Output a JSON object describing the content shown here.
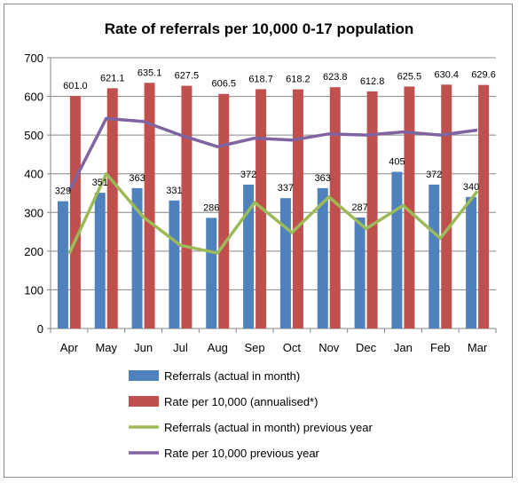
{
  "chart_data": {
    "type": "bar",
    "title": "Rate of referrals per 10,000 0-17 population",
    "categories": [
      "Apr",
      "May",
      "Jun",
      "Jul",
      "Aug",
      "Sep",
      "Oct",
      "Nov",
      "Dec",
      "Jan",
      "Feb",
      "Mar"
    ],
    "ylim": [
      0,
      700
    ],
    "yticks": [
      0,
      100,
      200,
      300,
      400,
      500,
      600,
      700
    ],
    "grid": true,
    "legend_position": "bottom",
    "series": [
      {
        "name": "Referrals (actual in month)",
        "kind": "bar",
        "color": "#4F81BD",
        "values": [
          329,
          351,
          363,
          331,
          286,
          372,
          337,
          363,
          287,
          405,
          372,
          340
        ],
        "labels": [
          "329",
          "351",
          "363",
          "331",
          "286",
          "372",
          "337",
          "363",
          "287",
          "405",
          "372",
          "340"
        ]
      },
      {
        "name": "Rate per 10,000 (annualised*)",
        "kind": "bar",
        "color": "#C0504D",
        "values": [
          601.0,
          621.1,
          635.1,
          627.5,
          606.5,
          618.7,
          618.2,
          623.8,
          612.8,
          625.5,
          630.4,
          629.6
        ],
        "labels": [
          "601.0",
          "621.1",
          "635.1",
          "627.5",
          "606.5",
          "618.7",
          "618.2",
          "623.8",
          "612.8",
          "625.5",
          "630.4",
          "629.6"
        ]
      },
      {
        "name": "Referrals (actual in month) previous year",
        "kind": "line",
        "color": "#9BBB59",
        "values": [
          193,
          400,
          288,
          215,
          195,
          326,
          248,
          340,
          258,
          318,
          233,
          355
        ]
      },
      {
        "name": "Rate per 10,000 previous year",
        "kind": "line",
        "color": "#8064A2",
        "values": [
          355,
          543,
          535,
          500,
          470,
          492,
          487,
          503,
          500,
          508,
          500,
          513
        ]
      }
    ]
  }
}
